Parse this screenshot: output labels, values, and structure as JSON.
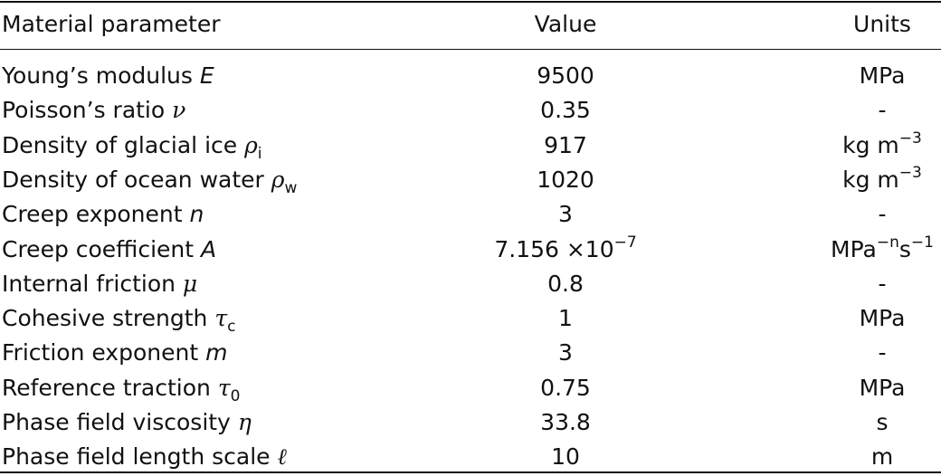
{
  "headers": {
    "param": "Material parameter",
    "value": "Value",
    "units": "Units"
  },
  "rows": [
    {
      "name": "Young’s modulus",
      "sym": "E",
      "sym_style": "it",
      "sub": "",
      "value": "9500",
      "units": "MPa",
      "units_sup": "",
      "units_tail": "",
      "units_tail_sup": ""
    },
    {
      "name": "Poisson’s ratio",
      "sym": "ν",
      "sym_style": "sym",
      "sub": "",
      "value": "0.35",
      "units": "-",
      "units_sup": "",
      "units_tail": "",
      "units_tail_sup": ""
    },
    {
      "name": "Density of glacial ice",
      "sym": "ρ",
      "sym_style": "sym",
      "sub": "i",
      "value": "917",
      "units": "kg m",
      "units_sup": "−3",
      "units_tail": "",
      "units_tail_sup": ""
    },
    {
      "name": "Density of ocean water",
      "sym": "ρ",
      "sym_style": "sym",
      "sub": "w",
      "value": "1020",
      "units": "kg m",
      "units_sup": "−3",
      "units_tail": "",
      "units_tail_sup": ""
    },
    {
      "name": "Creep exponent",
      "sym": "n",
      "sym_style": "it",
      "sub": "",
      "value": "3",
      "units": "-",
      "units_sup": "",
      "units_tail": "",
      "units_tail_sup": ""
    },
    {
      "name": "Creep coefficient",
      "sym": "A",
      "sym_style": "it",
      "sub": "",
      "value": "7.156 ×10",
      "value_sup": "−7",
      "units": "MPa",
      "units_sup": "−n",
      "units_tail": "s",
      "units_tail_sup": "−1"
    },
    {
      "name": "Internal friction",
      "sym": "μ",
      "sym_style": "sym",
      "sub": "",
      "value": "0.8",
      "units": "-",
      "units_sup": "",
      "units_tail": "",
      "units_tail_sup": ""
    },
    {
      "name": "Cohesive strength",
      "sym": "τ",
      "sym_style": "sym",
      "sub": "c",
      "value": "1",
      "units": "MPa",
      "units_sup": "",
      "units_tail": "",
      "units_tail_sup": ""
    },
    {
      "name": "Friction exponent",
      "sym": "m",
      "sym_style": "it",
      "sub": "",
      "value": "3",
      "units": "-",
      "units_sup": "",
      "units_tail": "",
      "units_tail_sup": ""
    },
    {
      "name": "Reference traction",
      "sym": "τ",
      "sym_style": "sym",
      "sub": "0",
      "value": "0.75",
      "units": "MPa",
      "units_sup": "",
      "units_tail": "",
      "units_tail_sup": ""
    },
    {
      "name": "Phase field viscosity",
      "sym": "η",
      "sym_style": "sym",
      "sub": "",
      "value": "33.8",
      "units": "s",
      "units_sup": "",
      "units_tail": "",
      "units_tail_sup": ""
    },
    {
      "name": "Phase field length scale",
      "sym": "ℓ",
      "sym_style": "sym",
      "sub": "",
      "value": "10",
      "units": "m",
      "units_sup": "",
      "units_tail": "",
      "units_tail_sup": ""
    }
  ]
}
